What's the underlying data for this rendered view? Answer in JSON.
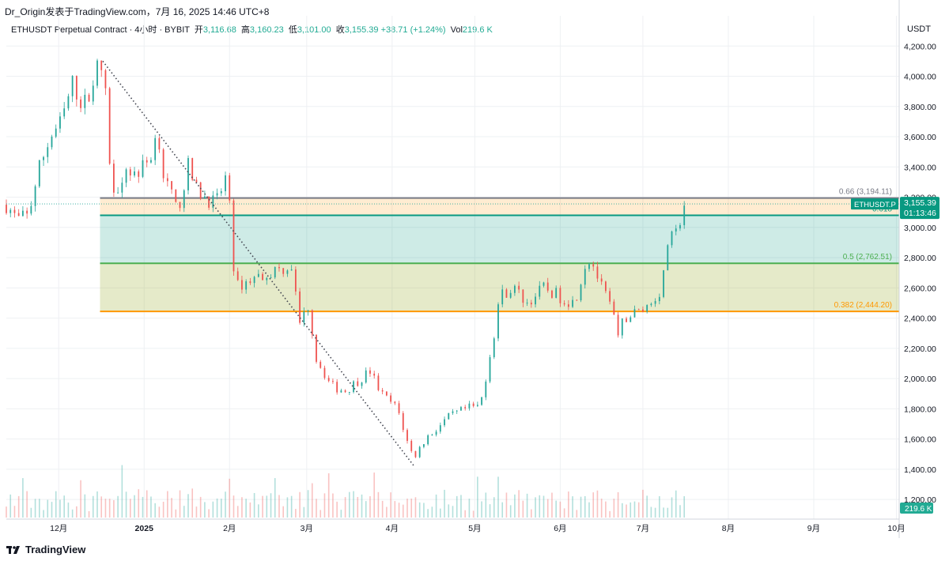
{
  "header": {
    "caption": "Dr_Origin发表于TradingView.com，7月 16, 2025 14:46 UTC+8",
    "symbol": "ETHUSDT Perpetual Contract · 4小时 · BYBIT",
    "open_label": "开",
    "open": "3,116.68",
    "high_label": "高",
    "high": "3,160.23",
    "low_label": "低",
    "low": "3,101.00",
    "close_label": "收",
    "close": "3,155.39",
    "change": "+38.71 (+1.24%)",
    "vol_label": "Vol",
    "vol": "219.6 K"
  },
  "price_scale": {
    "currency": "USDT"
  },
  "footer": {
    "brand": "TradingView"
  },
  "colors": {
    "up": "#26a69a",
    "down": "#ef5350",
    "fib_066": "#787b86",
    "fib_0618": "#089981",
    "fib_05": "#4caf50",
    "fib_0382": "#ff9800"
  },
  "chart_data": {
    "type": "candlestick",
    "symbol": "ETHUSDT.P",
    "y_axis_ticks": [
      1200,
      1400,
      1600,
      1800,
      2000,
      2200,
      2400,
      2600,
      2800,
      3000,
      3200,
      3400,
      3600,
      3800,
      4000,
      4200
    ],
    "y_tick_labels": [
      "1,200.00",
      "1,400.00",
      "1,600.00",
      "1,800.00",
      "2,000.00",
      "2,200.00",
      "2,400.00",
      "2,600.00",
      "2,800.00",
      "3,000.00",
      "3,200.00",
      "3,400.00",
      "3,600.00",
      "3,800.00",
      "4,000.00",
      "4,200.00"
    ],
    "ylim": [
      1070,
      4400
    ],
    "x_tick_labels": [
      "12月",
      "2025",
      "2月",
      "3月",
      "4月",
      "5月",
      "6月",
      "7月",
      "8月",
      "9月",
      "10月"
    ],
    "x_tick_dates": [
      "2024-12-01",
      "2025-01-01",
      "2025-02-01",
      "2025-03-01",
      "2025-04-01",
      "2025-05-01",
      "2025-06-01",
      "2025-07-01",
      "2025-08-01",
      "2025-09-01",
      "2025-10-01"
    ],
    "xlim": [
      "2024-11-12",
      "2025-10-02"
    ],
    "price_path": [
      [
        "2024-11-12",
        3150
      ],
      [
        "2024-11-16",
        3050
      ],
      [
        "2024-11-20",
        3080
      ],
      [
        "2024-11-24",
        3400
      ],
      [
        "2024-11-28",
        3600
      ],
      [
        "2024-12-02",
        3700
      ],
      [
        "2024-12-06",
        3950
      ],
      [
        "2024-12-10",
        3800
      ],
      [
        "2024-12-14",
        4000
      ],
      [
        "2024-12-16",
        4100
      ],
      [
        "2024-12-19",
        3750
      ],
      [
        "2024-12-20",
        3150
      ],
      [
        "2024-12-25",
        3400
      ],
      [
        "2024-12-29",
        3350
      ],
      [
        "2025-01-03",
        3450
      ],
      [
        "2025-01-06",
        3650
      ],
      [
        "2025-01-08",
        3350
      ],
      [
        "2025-01-13",
        3100
      ],
      [
        "2025-01-17",
        3400
      ],
      [
        "2025-01-20",
        3250
      ],
      [
        "2025-01-27",
        3150
      ],
      [
        "2025-01-31",
        3350
      ],
      [
        "2025-02-02",
        2900
      ],
      [
        "2025-02-03",
        2600
      ],
      [
        "2025-02-08",
        2650
      ],
      [
        "2025-02-15",
        2700
      ],
      [
        "2025-02-24",
        2750
      ],
      [
        "2025-02-26",
        2350
      ],
      [
        "2025-03-02",
        2500
      ],
      [
        "2025-03-04",
        2150
      ],
      [
        "2025-03-10",
        1950
      ],
      [
        "2025-03-15",
        1920
      ],
      [
        "2025-03-24",
        2050
      ],
      [
        "2025-03-28",
        1900
      ],
      [
        "2025-04-03",
        1800
      ],
      [
        "2025-04-07",
        1550
      ],
      [
        "2025-04-09",
        1480
      ],
      [
        "2025-04-13",
        1600
      ],
      [
        "2025-04-22",
        1750
      ],
      [
        "2025-04-28",
        1800
      ],
      [
        "2025-05-03",
        1820
      ],
      [
        "2025-05-08",
        2300
      ],
      [
        "2025-05-10",
        2550
      ],
      [
        "2025-05-15",
        2600
      ],
      [
        "2025-05-20",
        2500
      ],
      [
        "2025-05-26",
        2600
      ],
      [
        "2025-05-31",
        2550
      ],
      [
        "2025-06-06",
        2500
      ],
      [
        "2025-06-10",
        2750
      ],
      [
        "2025-06-12",
        2800
      ],
      [
        "2025-06-16",
        2600
      ],
      [
        "2025-06-20",
        2450
      ],
      [
        "2025-06-22",
        2250
      ],
      [
        "2025-06-24",
        2400
      ],
      [
        "2025-06-30",
        2450
      ],
      [
        "2025-07-04",
        2500
      ],
      [
        "2025-07-08",
        2600
      ],
      [
        "2025-07-10",
        2900
      ],
      [
        "2025-07-13",
        2950
      ],
      [
        "2025-07-16",
        3155
      ]
    ],
    "trend_line": [
      [
        "2024-12-17",
        4100
      ],
      [
        "2025-04-09",
        1420
      ]
    ],
    "fibonacci": [
      {
        "level": "0.66",
        "price": 3194.11,
        "label": "0.66 (3,194.11)"
      },
      {
        "level": "0.618",
        "price": 3080,
        "label": "0.618"
      },
      {
        "level": "0.5",
        "price": 2762.51,
        "label": "0.5 (2,762.51)"
      },
      {
        "level": "0.382",
        "price": 2444.2,
        "label": "0.382 (2,444.20)"
      }
    ],
    "fib_start_date": "2024-12-16",
    "last_price": {
      "label": "ETHUSDT.P",
      "price": "3,155.39",
      "countdown": "01:13:46"
    },
    "volume_label": "219.6 K"
  }
}
